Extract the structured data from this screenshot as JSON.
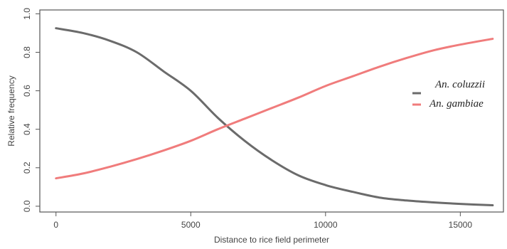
{
  "chart_data": {
    "type": "line",
    "xlabel": "Distance to rice field perimeter",
    "ylabel": "Relative frequency",
    "xlim": [
      -600,
      16600
    ],
    "ylim": [
      -0.03,
      1.02
    ],
    "xticks": [
      0,
      5000,
      10000,
      15000
    ],
    "yticks": [
      0.0,
      0.2,
      0.4,
      0.6,
      0.8,
      1.0
    ],
    "xtick_labels": [
      "0",
      "5000",
      "10000",
      "15000"
    ],
    "ytick_labels": [
      "0.0",
      "0.2",
      "0.4",
      "0.6",
      "0.8",
      "1.0"
    ],
    "grid": false,
    "legend_position": "right",
    "series": [
      {
        "name": "An. coluzzii",
        "color": "#6b6b6b",
        "x": [
          0,
          1000,
          2000,
          3000,
          4000,
          5000,
          6000,
          7000,
          8000,
          9000,
          10000,
          11000,
          12000,
          13000,
          14000,
          15000,
          16200
        ],
        "y": [
          0.925,
          0.9,
          0.86,
          0.8,
          0.7,
          0.6,
          0.46,
          0.34,
          0.24,
          0.16,
          0.11,
          0.075,
          0.045,
          0.03,
          0.02,
          0.012,
          0.005
        ]
      },
      {
        "name": "An. gambiae",
        "color": "#f07c7c",
        "x": [
          0,
          1000,
          2000,
          3000,
          4000,
          5000,
          6000,
          7000,
          8000,
          9000,
          10000,
          11000,
          12000,
          13000,
          14000,
          15000,
          16200
        ],
        "y": [
          0.145,
          0.17,
          0.205,
          0.245,
          0.29,
          0.34,
          0.4,
          0.455,
          0.51,
          0.565,
          0.625,
          0.675,
          0.725,
          0.77,
          0.81,
          0.84,
          0.87
        ]
      }
    ]
  }
}
